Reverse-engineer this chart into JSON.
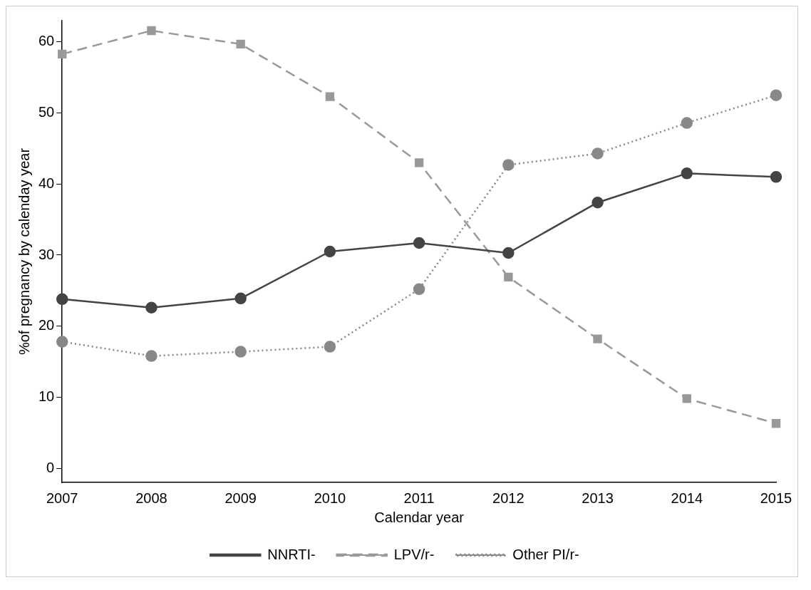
{
  "chart_data": {
    "type": "line",
    "xlabel": "Calendar year",
    "ylabel": "%of pregnancy by calenday year",
    "categories": [
      "2007",
      "2008",
      "2009",
      "2010",
      "2011",
      "2012",
      "2013",
      "2014",
      "2015"
    ],
    "series": [
      {
        "name": "NNRTI-",
        "color": "#444444",
        "marker": "circle",
        "line_style": "solid",
        "values": [
          23.8,
          22.6,
          23.9,
          30.5,
          31.7,
          30.3,
          37.4,
          41.5,
          41.0
        ]
      },
      {
        "name": "LPV/r-",
        "color": "#999999",
        "marker": "square",
        "line_style": "dashed",
        "values": [
          58.3,
          61.6,
          59.7,
          52.3,
          43.0,
          26.9,
          18.2,
          9.8,
          6.3
        ]
      },
      {
        "name": "Other PI/r-",
        "color": "#888888",
        "marker": "circle",
        "line_style": "dotted",
        "values": [
          17.8,
          15.8,
          16.4,
          17.1,
          25.2,
          42.7,
          44.3,
          48.6,
          52.5
        ]
      }
    ],
    "ylim": [
      -2,
      63
    ],
    "yticks": [
      0,
      10,
      20,
      30,
      40,
      50,
      60
    ],
    "grid": false,
    "legend": "bottom"
  }
}
